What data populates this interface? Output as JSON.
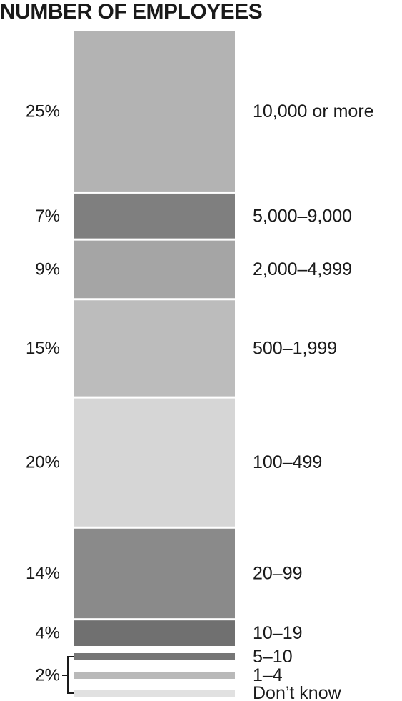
{
  "chart_data": {
    "type": "bar",
    "orientation": "stacked-vertical",
    "title": "NUMBER OF EMPLOYEES",
    "unit": "%",
    "segments": [
      {
        "category": "10,000 or more",
        "value": 25,
        "label": "25%",
        "color": "#b3b3b3"
      },
      {
        "category": "5,000–9,000",
        "value": 7,
        "label": "7%",
        "color": "#7f7f7f"
      },
      {
        "category": "2,000–4,999",
        "value": 9,
        "label": "9%",
        "color": "#a5a5a5"
      },
      {
        "category": "500–1,999",
        "value": 15,
        "label": "15%",
        "color": "#bcbcbc"
      },
      {
        "category": "100–499",
        "value": 20,
        "label": "20%",
        "color": "#d6d6d6"
      },
      {
        "category": "20–99",
        "value": 14,
        "label": "14%",
        "color": "#8a8a8a"
      },
      {
        "category": "10–19",
        "value": 4,
        "label": "4%",
        "color": "#707070"
      },
      {
        "category": "5–10",
        "value": 1,
        "label": "",
        "color": "#767676"
      },
      {
        "category": "1–4",
        "value": 1,
        "label": "",
        "color": "#b9b9b9"
      },
      {
        "category": "Don’t know",
        "value": 1,
        "label": "",
        "color": "#e1e1e1"
      }
    ],
    "group_label": {
      "label": "2%",
      "categories": [
        "5–10",
        "1–4",
        "Don’t know"
      ]
    }
  }
}
